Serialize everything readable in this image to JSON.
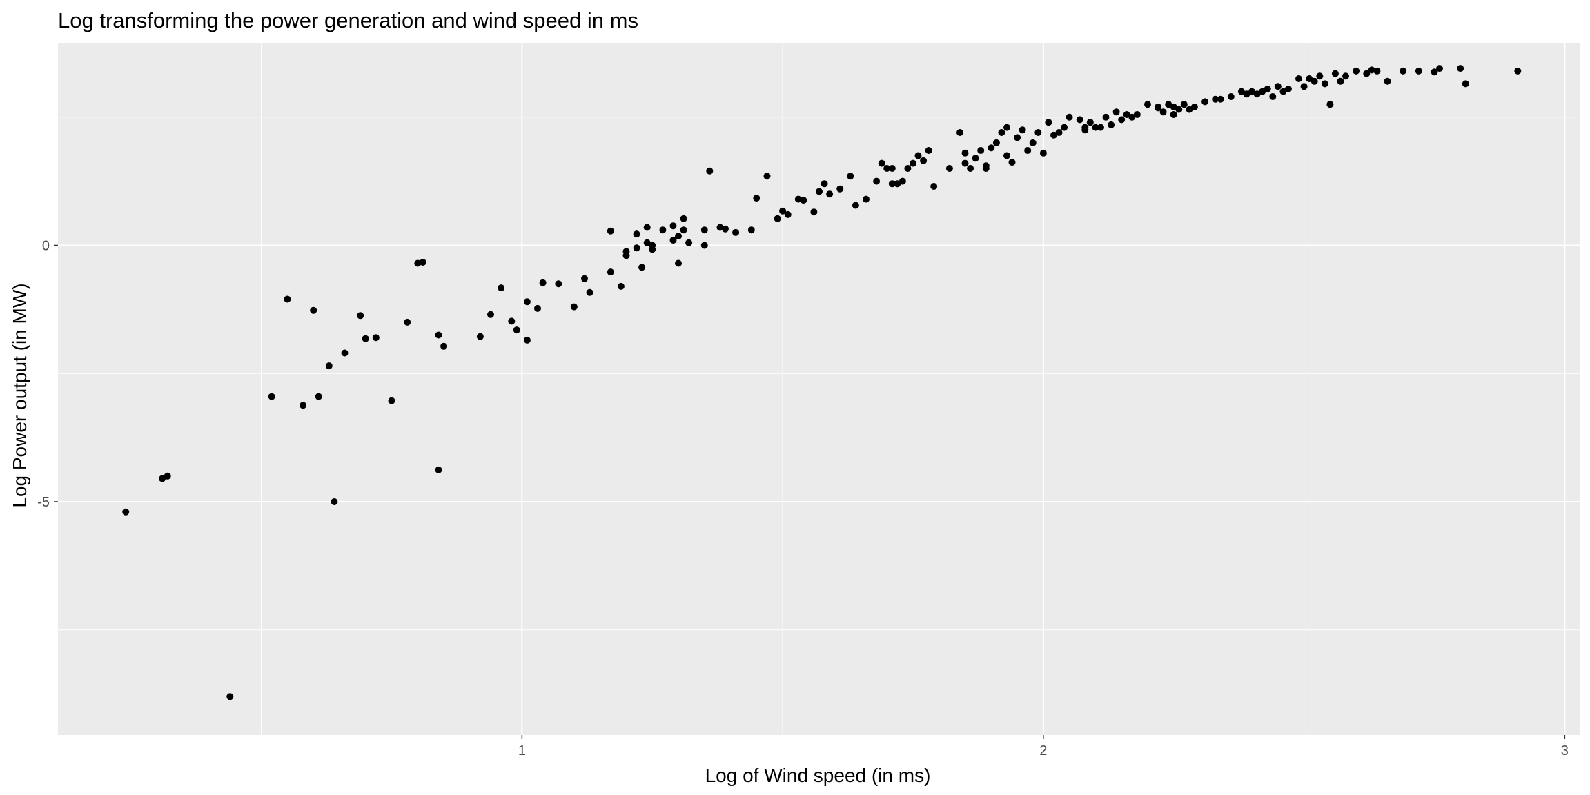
{
  "chart_data": {
    "type": "scatter",
    "title": "Log transforming the power generation and wind speed in ms",
    "xlabel": "Log of Wind speed (in ms)",
    "ylabel": "Log Power output (in MW)",
    "xlim": [
      0.11,
      3.03
    ],
    "ylim": [
      -9.55,
      3.95
    ],
    "x_ticks": [
      1,
      2,
      3
    ],
    "x_tick_labels": [
      "1",
      "2",
      "3"
    ],
    "x_minor_ticks": [
      0.5,
      1.5,
      2.5
    ],
    "y_ticks": [
      0,
      -5
    ],
    "y_tick_labels": [
      "0",
      "-5"
    ],
    "y_minor_ticks": [
      2.5,
      -2.5,
      -7.5
    ],
    "grid": true,
    "legend": "none",
    "point_color": "#000000",
    "panel_color": "#ebebeb",
    "grid_color": "#ffffff",
    "points": [
      [
        0.24,
        -5.2
      ],
      [
        0.31,
        -4.55
      ],
      [
        0.32,
        -4.5
      ],
      [
        0.44,
        -8.8
      ],
      [
        0.52,
        -2.95
      ],
      [
        0.55,
        -1.05
      ],
      [
        0.58,
        -3.12
      ],
      [
        0.6,
        -1.27
      ],
      [
        0.61,
        -2.95
      ],
      [
        0.63,
        -2.35
      ],
      [
        0.64,
        -5.0
      ],
      [
        0.66,
        -2.1
      ],
      [
        0.69,
        -1.37
      ],
      [
        0.7,
        -1.82
      ],
      [
        0.72,
        -1.8
      ],
      [
        0.75,
        -3.03
      ],
      [
        0.78,
        -1.5
      ],
      [
        0.8,
        -0.35
      ],
      [
        0.81,
        -0.33
      ],
      [
        0.84,
        -4.38
      ],
      [
        0.84,
        -1.75
      ],
      [
        0.85,
        -1.97
      ],
      [
        0.92,
        -1.78
      ],
      [
        0.94,
        -1.35
      ],
      [
        0.96,
        -0.83
      ],
      [
        0.98,
        -1.48
      ],
      [
        0.99,
        -1.65
      ],
      [
        1.01,
        -1.1
      ],
      [
        1.01,
        -1.85
      ],
      [
        1.03,
        -1.23
      ],
      [
        1.04,
        -0.73
      ],
      [
        1.07,
        -0.75
      ],
      [
        1.1,
        -1.2
      ],
      [
        1.12,
        -0.65
      ],
      [
        1.13,
        -0.92
      ],
      [
        1.17,
        -0.52
      ],
      [
        1.17,
        0.28
      ],
      [
        1.19,
        -0.8
      ],
      [
        1.2,
        -0.12
      ],
      [
        1.2,
        -0.2
      ],
      [
        1.22,
        0.22
      ],
      [
        1.22,
        -0.05
      ],
      [
        1.23,
        -0.43
      ],
      [
        1.24,
        0.05
      ],
      [
        1.24,
        0.35
      ],
      [
        1.25,
        -0.08
      ],
      [
        1.25,
        0.0
      ],
      [
        1.27,
        0.3
      ],
      [
        1.29,
        0.1
      ],
      [
        1.29,
        0.38
      ],
      [
        1.3,
        0.18
      ],
      [
        1.3,
        -0.35
      ],
      [
        1.31,
        0.3
      ],
      [
        1.31,
        0.52
      ],
      [
        1.32,
        0.05
      ],
      [
        1.35,
        0.0
      ],
      [
        1.35,
        0.3
      ],
      [
        1.36,
        1.45
      ],
      [
        1.38,
        0.35
      ],
      [
        1.39,
        0.32
      ],
      [
        1.41,
        0.25
      ],
      [
        1.44,
        0.3
      ],
      [
        1.45,
        0.92
      ],
      [
        1.47,
        1.35
      ],
      [
        1.49,
        0.52
      ],
      [
        1.5,
        0.67
      ],
      [
        1.51,
        0.6
      ],
      [
        1.53,
        0.9
      ],
      [
        1.54,
        0.88
      ],
      [
        1.56,
        0.65
      ],
      [
        1.57,
        1.05
      ],
      [
        1.58,
        1.2
      ],
      [
        1.59,
        1.0
      ],
      [
        1.61,
        1.1
      ],
      [
        1.63,
        1.35
      ],
      [
        1.64,
        0.78
      ],
      [
        1.66,
        0.9
      ],
      [
        1.68,
        1.25
      ],
      [
        1.69,
        1.6
      ],
      [
        1.7,
        1.5
      ],
      [
        1.71,
        1.5
      ],
      [
        1.71,
        1.2
      ],
      [
        1.72,
        1.2
      ],
      [
        1.73,
        1.25
      ],
      [
        1.74,
        1.5
      ],
      [
        1.75,
        1.6
      ],
      [
        1.76,
        1.75
      ],
      [
        1.78,
        1.85
      ],
      [
        1.77,
        1.65
      ],
      [
        1.79,
        1.15
      ],
      [
        1.82,
        1.5
      ],
      [
        1.84,
        2.2
      ],
      [
        1.85,
        1.8
      ],
      [
        1.85,
        1.6
      ],
      [
        1.86,
        1.5
      ],
      [
        1.87,
        1.7
      ],
      [
        1.88,
        1.85
      ],
      [
        1.89,
        1.5
      ],
      [
        1.89,
        1.55
      ],
      [
        1.9,
        1.9
      ],
      [
        1.91,
        2.0
      ],
      [
        1.92,
        2.2
      ],
      [
        1.93,
        1.75
      ],
      [
        1.93,
        2.3
      ],
      [
        1.94,
        1.62
      ],
      [
        1.95,
        2.1
      ],
      [
        1.96,
        2.25
      ],
      [
        1.97,
        1.85
      ],
      [
        1.98,
        2.0
      ],
      [
        1.99,
        2.2
      ],
      [
        2.0,
        1.8
      ],
      [
        2.01,
        2.4
      ],
      [
        2.02,
        2.15
      ],
      [
        2.03,
        2.2
      ],
      [
        2.04,
        2.3
      ],
      [
        2.05,
        2.5
      ],
      [
        2.07,
        2.45
      ],
      [
        2.08,
        2.3
      ],
      [
        2.08,
        2.25
      ],
      [
        2.09,
        2.4
      ],
      [
        2.1,
        2.3
      ],
      [
        2.11,
        2.3
      ],
      [
        2.12,
        2.5
      ],
      [
        2.13,
        2.35
      ],
      [
        2.14,
        2.6
      ],
      [
        2.15,
        2.45
      ],
      [
        2.16,
        2.55
      ],
      [
        2.17,
        2.5
      ],
      [
        2.18,
        2.55
      ],
      [
        2.2,
        2.75
      ],
      [
        2.22,
        2.7
      ],
      [
        2.22,
        2.68
      ],
      [
        2.23,
        2.6
      ],
      [
        2.24,
        2.75
      ],
      [
        2.25,
        2.7
      ],
      [
        2.25,
        2.55
      ],
      [
        2.26,
        2.65
      ],
      [
        2.27,
        2.75
      ],
      [
        2.28,
        2.65
      ],
      [
        2.29,
        2.7
      ],
      [
        2.31,
        2.8
      ],
      [
        2.33,
        2.85
      ],
      [
        2.34,
        2.85
      ],
      [
        2.36,
        2.9
      ],
      [
        2.38,
        3.0
      ],
      [
        2.39,
        2.95
      ],
      [
        2.4,
        3.0
      ],
      [
        2.41,
        2.95
      ],
      [
        2.42,
        3.0
      ],
      [
        2.43,
        3.05
      ],
      [
        2.44,
        2.9
      ],
      [
        2.45,
        3.1
      ],
      [
        2.46,
        3.0
      ],
      [
        2.47,
        3.05
      ],
      [
        2.49,
        3.25
      ],
      [
        2.5,
        3.1
      ],
      [
        2.51,
        3.25
      ],
      [
        2.52,
        3.2
      ],
      [
        2.53,
        3.3
      ],
      [
        2.54,
        3.15
      ],
      [
        2.55,
        2.75
      ],
      [
        2.56,
        3.35
      ],
      [
        2.57,
        3.2
      ],
      [
        2.58,
        3.3
      ],
      [
        2.6,
        3.4
      ],
      [
        2.62,
        3.35
      ],
      [
        2.63,
        3.42
      ],
      [
        2.64,
        3.4
      ],
      [
        2.66,
        3.2
      ],
      [
        2.69,
        3.4
      ],
      [
        2.72,
        3.4
      ],
      [
        2.75,
        3.38
      ],
      [
        2.76,
        3.45
      ],
      [
        2.8,
        3.45
      ],
      [
        2.81,
        3.15
      ],
      [
        2.91,
        3.4
      ]
    ]
  }
}
